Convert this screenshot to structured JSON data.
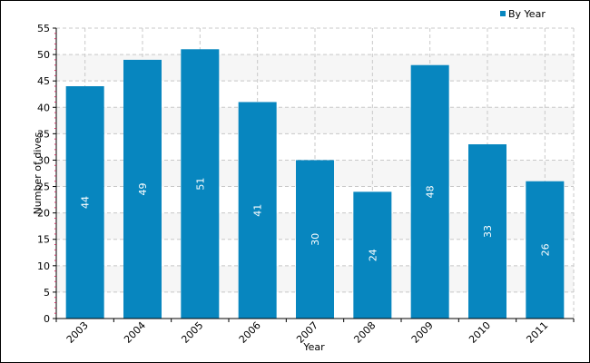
{
  "chart_data": {
    "type": "bar",
    "categories": [
      "2003",
      "2004",
      "2005",
      "2006",
      "2007",
      "2008",
      "2009",
      "2010",
      "2011"
    ],
    "series": [
      {
        "name": "By Year",
        "values": [
          44,
          49,
          51,
          41,
          30,
          24,
          48,
          33,
          26
        ],
        "color": "#0786bf"
      }
    ],
    "xlabel": "Year",
    "ylabel": "Number of dives",
    "ylim": [
      0,
      55
    ],
    "ytick_step": 5,
    "grid": true,
    "data_labels": true,
    "legend": {
      "placement": "top-right"
    },
    "band_color": "#f6f6f6",
    "grid_color": "#c8c8c8"
  }
}
